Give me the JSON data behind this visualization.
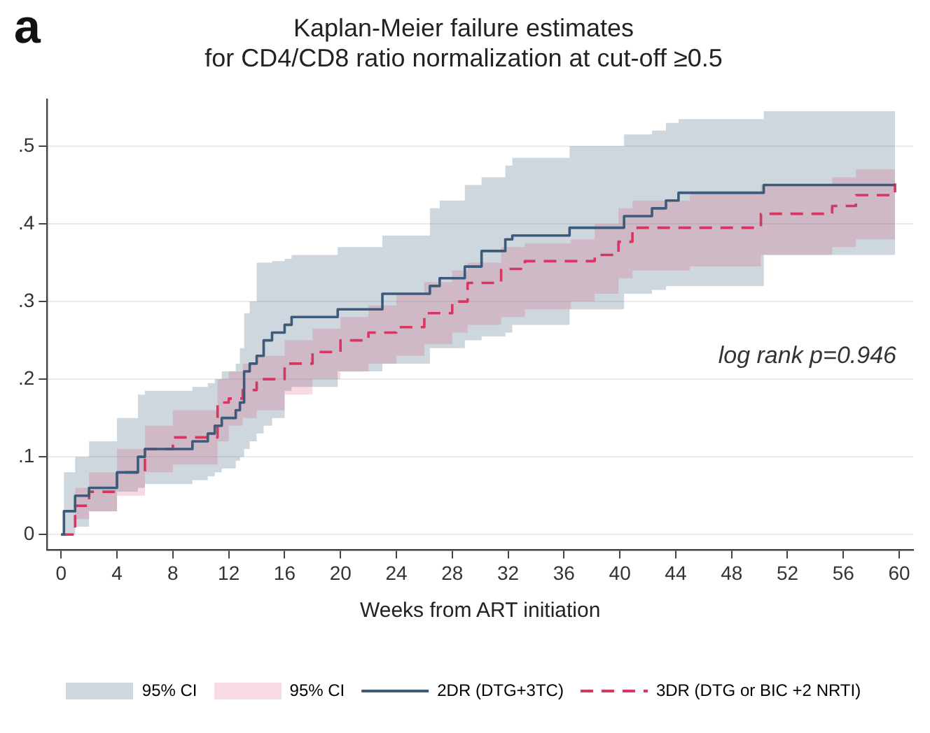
{
  "chart_data": {
    "type": "step",
    "title": "Kaplan-Meier failure estimates\nfor CD4/CD8 ratio normalization at cut-off ≥0.5",
    "xlabel": "Weeks from ART initiation",
    "annotations": [
      "a",
      "log rank p=0.946",
      "95% CI",
      "95% CI"
    ],
    "xlim": [
      -1,
      61
    ],
    "xticks": [
      0,
      4,
      8,
      12,
      16,
      20,
      24,
      28,
      32,
      36,
      40,
      44,
      48,
      52,
      56,
      60
    ],
    "ylim": [
      -0.02,
      0.56
    ],
    "yticks": [
      0,
      {
        "value": 0.1,
        "label": ".1"
      },
      {
        "value": 0.2,
        "label": ".2"
      },
      {
        "value": 0.3,
        "label": ".3"
      },
      {
        "value": 0.4,
        "label": ".4"
      },
      {
        "value": 0.5,
        "label": ".5"
      }
    ],
    "grid": "y",
    "legend": "bottom",
    "marker": "none",
    "series": [
      {
        "name": "2DR (DTG+3TC)",
        "color": "#3c5a7a",
        "line_style": "solid",
        "x": [
          0,
          0.2,
          1,
          2,
          4,
          5.5,
          6,
          9.4,
          10.5,
          11,
          11.5,
          12.5,
          12.8,
          13.1,
          13.5,
          14,
          14.5,
          15.1,
          16,
          16.5,
          19.8,
          23,
          26.4,
          27.1,
          28.9,
          30.1,
          31.8,
          32.3,
          36.4,
          40.3,
          42.3,
          43.3,
          44.2,
          50.3,
          59.7
        ],
        "values": [
          0,
          0.03,
          0.05,
          0.06,
          0.08,
          0.1,
          0.11,
          0.12,
          0.13,
          0.14,
          0.15,
          0.16,
          0.17,
          0.21,
          0.22,
          0.23,
          0.25,
          0.26,
          0.27,
          0.28,
          0.29,
          0.31,
          0.32,
          0.33,
          0.345,
          0.365,
          0.38,
          0.385,
          0.395,
          0.41,
          0.42,
          0.43,
          0.44,
          0.45,
          0.45
        ],
        "lower": [
          0,
          0,
          0.01,
          0.03,
          0.055,
          0.06,
          0.065,
          0.07,
          0.075,
          0.08,
          0.085,
          0.095,
          0.1,
          0.11,
          0.12,
          0.13,
          0.14,
          0.15,
          0.185,
          0.19,
          0.21,
          0.22,
          0.24,
          0.24,
          0.25,
          0.255,
          0.26,
          0.27,
          0.29,
          0.31,
          0.315,
          0.32,
          0.32,
          0.36,
          0.36
        ],
        "upper": [
          0,
          0.08,
          0.1,
          0.12,
          0.15,
          0.18,
          0.185,
          0.19,
          0.195,
          0.2,
          0.21,
          0.22,
          0.24,
          0.285,
          0.3,
          0.35,
          0.35,
          0.352,
          0.355,
          0.36,
          0.37,
          0.385,
          0.42,
          0.43,
          0.45,
          0.46,
          0.475,
          0.485,
          0.5,
          0.515,
          0.52,
          0.53,
          0.535,
          0.545,
          0.545
        ]
      },
      {
        "name": "3DR (DTG or BIC +2 NRTI)",
        "color": "#d6365f",
        "line_style": "dashed",
        "x": [
          0,
          1,
          2,
          4,
          6,
          8,
          11.2,
          12,
          13,
          14,
          16,
          18,
          20,
          22,
          24,
          26,
          28,
          29.1,
          31.5,
          33.2,
          36.5,
          38.2,
          39.9,
          40.9,
          45,
          50.1,
          55.2,
          56.9,
          59.7
        ],
        "values": [
          0,
          0.037,
          0.055,
          0.08,
          0.11,
          0.125,
          0.17,
          0.175,
          0.186,
          0.2,
          0.22,
          0.235,
          0.25,
          0.26,
          0.267,
          0.285,
          0.3,
          0.324,
          0.342,
          0.352,
          0.352,
          0.36,
          0.377,
          0.395,
          0.395,
          0.413,
          0.423,
          0.437,
          0.452
        ],
        "lower": [
          0,
          0.02,
          0.03,
          0.05,
          0.08,
          0.09,
          0.12,
          0.14,
          0.15,
          0.16,
          0.18,
          0.2,
          0.21,
          0.22,
          0.23,
          0.245,
          0.26,
          0.27,
          0.28,
          0.29,
          0.3,
          0.31,
          0.33,
          0.34,
          0.345,
          0.36,
          0.37,
          0.38,
          0.39
        ],
        "upper": [
          0,
          0.06,
          0.08,
          0.11,
          0.14,
          0.16,
          0.2,
          0.21,
          0.22,
          0.23,
          0.25,
          0.265,
          0.28,
          0.295,
          0.31,
          0.325,
          0.34,
          0.35,
          0.37,
          0.375,
          0.38,
          0.4,
          0.42,
          0.43,
          0.44,
          0.45,
          0.46,
          0.47,
          0.5
        ]
      }
    ]
  }
}
